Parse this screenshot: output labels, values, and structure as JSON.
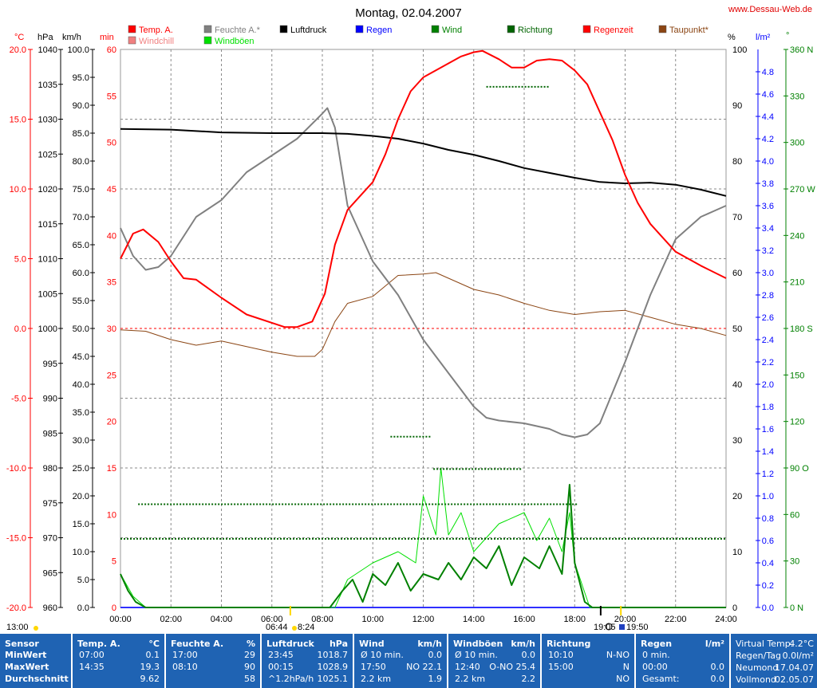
{
  "title": "Montag, 02.04.2007",
  "site": "www.Dessau-Web.de",
  "colors": {
    "temp": "#ff0000",
    "windchill": "#f08080",
    "feuchte": "#808080",
    "windboeen": "#00e000",
    "luftdruck": "#000000",
    "regen": "#0000ff",
    "wind": "#008000",
    "richtung": "#006400",
    "regenzeit": "#ff0000",
    "taupunkt": "#8b4513",
    "table_bg": "#1f63b3"
  },
  "legend": [
    {
      "label": "Temp. A.",
      "color": "#ff0000"
    },
    {
      "label": "Windchill",
      "color": "#f08080"
    },
    {
      "label": "Feuchte A.*",
      "color": "#808080"
    },
    {
      "label": "Windböen",
      "color": "#00e000"
    },
    {
      "label": "Luftdruck",
      "color": "#000000"
    },
    {
      "label": "Regen",
      "color": "#0000ff"
    },
    {
      "label": "Wind",
      "color": "#008000"
    },
    {
      "label": "Richtung",
      "color": "#006400"
    },
    {
      "label": "Regenzeit",
      "color": "#ff0000"
    },
    {
      "label": "Taupunkt*",
      "color": "#8b4513"
    }
  ],
  "axis_headers": {
    "temp": "°C",
    "hpa": "hPa",
    "kmh": "km/h",
    "min": "min",
    "pct": "%",
    "lm2": "l/m²",
    "deg": "°"
  },
  "axes": {
    "temp": [
      "20.0",
      "15.0",
      "10.0",
      "5.0",
      "0.0",
      "-5.0",
      "-10.0",
      "-15.0",
      "-20.0"
    ],
    "hpa": [
      "1040",
      "1035",
      "1030",
      "1025",
      "1020",
      "1015",
      "1010",
      "1005",
      "1000",
      "995",
      "990",
      "985",
      "980",
      "975",
      "970",
      "965",
      "960"
    ],
    "kmh": [
      "100.0",
      "95.0",
      "90.0",
      "85.0",
      "80.0",
      "75.0",
      "70.0",
      "65.0",
      "60.0",
      "55.0",
      "50.0",
      "45.0",
      "40.0",
      "35.0",
      "30.0",
      "25.0",
      "20.0",
      "15.0",
      "10.0",
      "5.0",
      "0.0"
    ],
    "min": [
      "60",
      "55",
      "50",
      "45",
      "40",
      "35",
      "30",
      "25",
      "20",
      "15",
      "10",
      "5",
      "0"
    ],
    "pct": [
      "100",
      "90",
      "80",
      "70",
      "60",
      "50",
      "40",
      "30",
      "20",
      "10",
      "0"
    ],
    "lm2": [
      "4.8",
      "4.6",
      "4.4",
      "4.2",
      "4.0",
      "3.8",
      "3.6",
      "3.4",
      "3.2",
      "3.0",
      "2.8",
      "2.6",
      "2.4",
      "2.2",
      "2.0",
      "1.8",
      "1.6",
      "1.4",
      "1.2",
      "1.0",
      "0.8",
      "0.6",
      "0.4",
      "0.2",
      "0.0"
    ],
    "deg": [
      "360 N",
      "330",
      "300",
      "270 W",
      "240",
      "210",
      "180 S",
      "150",
      "120",
      "90 O",
      "60",
      "30",
      "0 N"
    ],
    "time": [
      "00:00",
      "02:00",
      "04:00",
      "06:00",
      "08:00",
      "10:00",
      "12:00",
      "14:00",
      "16:00",
      "18:00",
      "20:00",
      "22:00",
      "24:00"
    ]
  },
  "extra_labels": {
    "left": "13:00",
    "sunrise": "06:44",
    "sunrise_b": "8:24",
    "sunset": "19:50",
    "moon": "19:05"
  },
  "chart_data": {
    "type": "line",
    "x_unit": "hour",
    "x_range": [
      0,
      24
    ],
    "series": [
      {
        "name": "Temp. A.",
        "unit": "°C",
        "points": [
          [
            0,
            5
          ],
          [
            0.5,
            6.8
          ],
          [
            0.9,
            7.1
          ],
          [
            1.5,
            6.2
          ],
          [
            2,
            4.8
          ],
          [
            2.5,
            3.6
          ],
          [
            3,
            3.5
          ],
          [
            4,
            2.2
          ],
          [
            5,
            1.0
          ],
          [
            6.5,
            0.1
          ],
          [
            7,
            0.1
          ],
          [
            7.6,
            0.5
          ],
          [
            8.1,
            2.5
          ],
          [
            8.5,
            6.0
          ],
          [
            9,
            8.5
          ],
          [
            9.5,
            9.5
          ],
          [
            10,
            10.5
          ],
          [
            10.5,
            12.5
          ],
          [
            11,
            15.0
          ],
          [
            11.5,
            17.0
          ],
          [
            12,
            18.0
          ],
          [
            12.5,
            18.5
          ],
          [
            13,
            19.0
          ],
          [
            13.5,
            19.5
          ],
          [
            14,
            19.8
          ],
          [
            14.35,
            19.9
          ],
          [
            15,
            19.3
          ],
          [
            15.5,
            18.7
          ],
          [
            16,
            18.7
          ],
          [
            16.5,
            19.2
          ],
          [
            17,
            19.3
          ],
          [
            17.5,
            19.2
          ],
          [
            18,
            18.5
          ],
          [
            18.5,
            17.5
          ],
          [
            19,
            15.5
          ],
          [
            19.5,
            13.5
          ],
          [
            20,
            11.0
          ],
          [
            20.5,
            9.0
          ],
          [
            21,
            7.5
          ],
          [
            21.5,
            6.5
          ],
          [
            22,
            5.5
          ],
          [
            23,
            4.5
          ],
          [
            24,
            3.6
          ]
        ]
      },
      {
        "name": "Feuchte A.*",
        "unit": "%",
        "points": [
          [
            0,
            68
          ],
          [
            0.5,
            63
          ],
          [
            1,
            60.5
          ],
          [
            1.5,
            61
          ],
          [
            2,
            63
          ],
          [
            3,
            70
          ],
          [
            4,
            73
          ],
          [
            5,
            78
          ],
          [
            6,
            81
          ],
          [
            7,
            84
          ],
          [
            8,
            88.5
          ],
          [
            8.2,
            89.5
          ],
          [
            8.5,
            86
          ],
          [
            9,
            72
          ],
          [
            10,
            62
          ],
          [
            11,
            56
          ],
          [
            12,
            48
          ],
          [
            13,
            42
          ],
          [
            14,
            36
          ],
          [
            14.5,
            34
          ],
          [
            15,
            33.5
          ],
          [
            16,
            33
          ],
          [
            17,
            32
          ],
          [
            17.5,
            31
          ],
          [
            18,
            30.5
          ],
          [
            18.5,
            31
          ],
          [
            19,
            33
          ],
          [
            20,
            44
          ],
          [
            21,
            56
          ],
          [
            22,
            66
          ],
          [
            23,
            70
          ],
          [
            24,
            72
          ]
        ]
      },
      {
        "name": "Luftdruck",
        "unit": "hPa",
        "points": [
          [
            0,
            1028.6
          ],
          [
            2,
            1028.5
          ],
          [
            4,
            1028.1
          ],
          [
            6,
            1028.0
          ],
          [
            8,
            1028.0
          ],
          [
            9,
            1027.9
          ],
          [
            10,
            1027.6
          ],
          [
            11,
            1027.2
          ],
          [
            12,
            1026.5
          ],
          [
            13,
            1025.6
          ],
          [
            14,
            1024.9
          ],
          [
            15,
            1024.0
          ],
          [
            16,
            1023.0
          ],
          [
            17,
            1022.3
          ],
          [
            18,
            1021.6
          ],
          [
            19,
            1021.0
          ],
          [
            20,
            1020.8
          ],
          [
            21,
            1020.9
          ],
          [
            22,
            1020.6
          ],
          [
            23,
            1019.9
          ],
          [
            24,
            1019.0
          ]
        ]
      },
      {
        "name": "Taupunkt*",
        "unit": "°C",
        "points": [
          [
            0,
            -0.1
          ],
          [
            1,
            -0.2
          ],
          [
            2,
            -0.8
          ],
          [
            3,
            -1.2
          ],
          [
            4,
            -0.9
          ],
          [
            5,
            -1.3
          ],
          [
            6,
            -1.7
          ],
          [
            7,
            -2.0
          ],
          [
            7.7,
            -2.0
          ],
          [
            8,
            -1.5
          ],
          [
            8.5,
            0.5
          ],
          [
            9,
            1.8
          ],
          [
            10,
            2.3
          ],
          [
            11,
            3.8
          ],
          [
            12,
            3.9
          ],
          [
            12.5,
            4.0
          ],
          [
            13,
            3.6
          ],
          [
            14,
            2.8
          ],
          [
            15,
            2.4
          ],
          [
            16,
            1.8
          ],
          [
            17,
            1.3
          ],
          [
            18,
            1.0
          ],
          [
            19,
            1.2
          ],
          [
            20,
            1.3
          ],
          [
            21,
            0.8
          ],
          [
            22,
            0.3
          ],
          [
            23,
            0.0
          ],
          [
            24,
            -0.5
          ]
        ]
      },
      {
        "name": "Wind",
        "unit": "km/h",
        "points": [
          [
            0,
            6
          ],
          [
            0.3,
            3
          ],
          [
            0.6,
            1
          ],
          [
            1,
            0
          ],
          [
            8.3,
            0
          ],
          [
            8.8,
            3
          ],
          [
            9.2,
            5
          ],
          [
            9.6,
            1
          ],
          [
            10,
            6
          ],
          [
            10.5,
            4
          ],
          [
            11,
            8
          ],
          [
            11.5,
            3
          ],
          [
            12,
            6
          ],
          [
            12.6,
            5
          ],
          [
            13,
            8
          ],
          [
            13.5,
            5
          ],
          [
            14,
            9
          ],
          [
            14.5,
            7
          ],
          [
            15,
            11
          ],
          [
            15.5,
            4
          ],
          [
            16,
            9
          ],
          [
            16.6,
            7
          ],
          [
            17,
            11
          ],
          [
            17.5,
            6
          ],
          [
            17.8,
            22
          ],
          [
            18,
            8
          ],
          [
            18.4,
            1
          ],
          [
            18.7,
            0
          ],
          [
            24,
            0
          ]
        ]
      },
      {
        "name": "Windböen",
        "unit": "km/h",
        "points": [
          [
            0,
            6
          ],
          [
            0.5,
            2
          ],
          [
            1,
            0
          ],
          [
            8.5,
            0
          ],
          [
            9,
            5
          ],
          [
            10,
            8
          ],
          [
            11,
            10
          ],
          [
            11.7,
            8
          ],
          [
            12,
            20
          ],
          [
            12.5,
            13
          ],
          [
            12.7,
            25
          ],
          [
            13,
            13
          ],
          [
            13.5,
            17
          ],
          [
            14,
            10
          ],
          [
            15,
            15
          ],
          [
            16,
            17
          ],
          [
            16.5,
            12
          ],
          [
            17,
            16
          ],
          [
            17.5,
            10
          ],
          [
            17.8,
            17
          ],
          [
            18,
            8
          ],
          [
            18.6,
            0
          ],
          [
            24,
            0
          ]
        ]
      }
    ],
    "dot_levels": [
      {
        "unit": "km/h",
        "value": 12.3,
        "start": 0,
        "end": 24
      },
      {
        "unit": "km/h",
        "value": 18.5,
        "start": 0.7,
        "end": 18.1
      },
      {
        "unit": "km/h",
        "value": 24.8,
        "start": 12.4,
        "end": 15.9
      },
      {
        "unit": "km/h",
        "value": 30.6,
        "start": 10.7,
        "end": 12.3
      },
      {
        "unit": "km/h",
        "value": 93.3,
        "start": 14.5,
        "end": 17.0
      }
    ],
    "stats": {
      "headers": [
        {
          "name": "Sensor",
          "unit": ""
        },
        {
          "name": "Temp. A.",
          "unit": "°C"
        },
        {
          "name": "Feuchte A.",
          "unit": "%"
        },
        {
          "name": "Luftdruck",
          "unit": "hPa"
        },
        {
          "name": "Wind",
          "unit": "km/h"
        },
        {
          "name": "Windböen",
          "unit": "km/h"
        },
        {
          "name": "Richtung",
          "unit": ""
        },
        {
          "name": "Regen",
          "unit": "l/m²"
        }
      ],
      "row_labels": [
        "MinWert",
        "MaxWert",
        "Durchschnitt"
      ],
      "cols": [
        {
          "cells": [
            [
              "07:00",
              "0.1"
            ],
            [
              "14:35",
              "19.3"
            ],
            [
              "",
              "9.62"
            ]
          ]
        },
        {
          "cells": [
            [
              "17:00",
              "29"
            ],
            [
              "08:10",
              "90"
            ],
            [
              "",
              "58"
            ]
          ]
        },
        {
          "cells": [
            [
              "23:45",
              "1018.7"
            ],
            [
              "00:15",
              "1028.9"
            ],
            [
              "^1.2hPa/h",
              "1025.1"
            ]
          ]
        },
        {
          "cells": [
            [
              "Ø 10 min.",
              "0.0"
            ],
            [
              "17:50",
              "NO 22.1"
            ],
            [
              "2.2 km",
              "1.9"
            ]
          ]
        },
        {
          "cells": [
            [
              "Ø 10 min.",
              "0.0"
            ],
            [
              "12:40",
              "O-NO 25.4"
            ],
            [
              "2.2 km",
              "2.2"
            ]
          ]
        },
        {
          "cells": [
            [
              "10:10",
              "N-NO"
            ],
            [
              "15:00",
              "N"
            ],
            [
              "",
              "NO"
            ]
          ]
        },
        {
          "cells": [
            [
              "0 min.",
              ""
            ],
            [
              "00:00",
              "0.0"
            ],
            [
              "Gesamt:",
              "0.0"
            ]
          ]
        }
      ],
      "right": [
        {
          "label": "Virtual Temp.",
          "value": "4.2°C"
        },
        {
          "label": "Regen/Tag",
          "value": "0.0l/m²"
        },
        {
          "label": "Neumond",
          "value": "17.04.07"
        },
        {
          "label": "Vollmond",
          "value": "02.05.07"
        }
      ]
    }
  }
}
